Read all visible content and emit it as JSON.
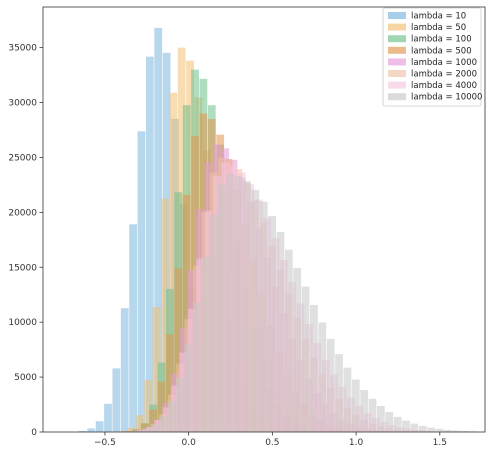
{
  "chart_data": {
    "type": "bar",
    "title": "",
    "xlabel": "",
    "ylabel": "",
    "xlim": [
      -0.87,
      1.77
    ],
    "ylim": [
      0,
      38700
    ],
    "grid": false,
    "legend_position": "top-right",
    "bin_width": 0.05,
    "xticks": [
      -0.5,
      0.0,
      0.5,
      1.0,
      1.5
    ],
    "xtick_labels": [
      "−0.5",
      "0.0",
      "0.5",
      "1.0",
      "1.5"
    ],
    "yticks": [
      0,
      5000,
      10000,
      15000,
      20000,
      25000,
      30000,
      35000
    ],
    "ytick_labels": [
      "0",
      "5000",
      "10000",
      "15000",
      "20000",
      "25000",
      "30000",
      "35000"
    ],
    "series": [
      {
        "name": "lambda = 10",
        "color": "#7ab6dd",
        "center": -0.18,
        "peak": 36800,
        "sigma_left": 0.13,
        "sigma_right": 0.14
      },
      {
        "name": "lambda = 50",
        "color": "#f2bf72",
        "center": -0.04,
        "peak": 35000,
        "sigma_left": 0.1,
        "sigma_right": 0.19
      },
      {
        "name": "lambda = 100",
        "color": "#6fc08a",
        "center": 0.04,
        "peak": 33000,
        "sigma_left": 0.11,
        "sigma_right": 0.22
      },
      {
        "name": "lambda = 500",
        "color": "#e2964f",
        "center": 0.09,
        "peak": 29000,
        "sigma_left": 0.13,
        "sigma_right": 0.27
      },
      {
        "name": "lambda = 1000",
        "color": "#e79ad9",
        "center": 0.17,
        "peak": 26200,
        "sigma_left": 0.14,
        "sigma_right": 0.3
      },
      {
        "name": "lambda = 2000",
        "color": "#f0c1a6",
        "center": 0.2,
        "peak": 25000,
        "sigma_left": 0.15,
        "sigma_right": 0.34
      },
      {
        "name": "lambda = 4000",
        "color": "#f6c6e1",
        "center": 0.22,
        "peak": 24500,
        "sigma_left": 0.16,
        "sigma_right": 0.37
      },
      {
        "name": "lambda = 10000",
        "color": "#c7c7c7",
        "center": 0.25,
        "peak": 23500,
        "sigma_left": 0.17,
        "sigma_right": 0.42
      }
    ]
  }
}
